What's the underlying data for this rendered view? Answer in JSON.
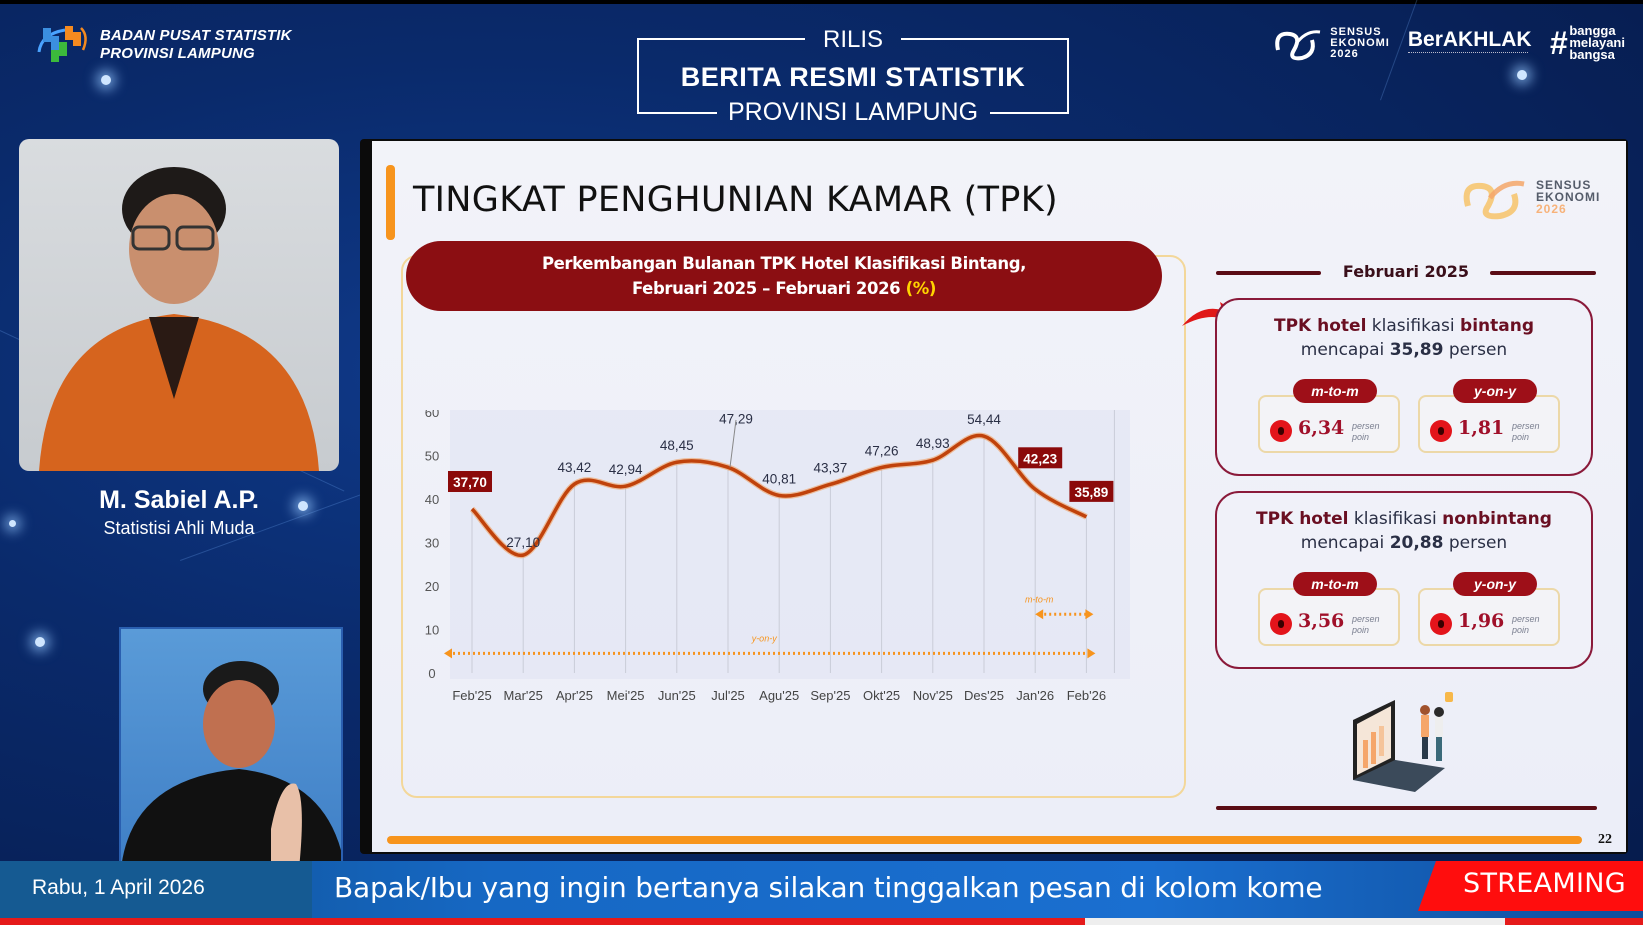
{
  "header": {
    "org_line1": "BADAN PUSAT STATISTIK",
    "org_line2": "PROVINSI LAMPUNG",
    "rilis_top": "RILIS",
    "rilis_main": "BERITA RESMI STATISTIK",
    "rilis_bottom": "PROVINSI LAMPUNG",
    "logos": {
      "sensus_line1": "SENSUS",
      "sensus_line2": "EKONOMI",
      "sensus_line3": "2026",
      "berakhlak": "BerAKHLAK",
      "bangga_line1": "bangga",
      "bangga_line2": "melayani",
      "bangga_line3": "bangsa"
    }
  },
  "speaker": {
    "name": "M. Sabiel A.P.",
    "role": "Statistisi Ahli Muda"
  },
  "slide": {
    "title": "TINGKAT PENGHUNIAN KAMAR (TPK)",
    "logo": {
      "line1": "SENSUS",
      "line2": "EKONOMI",
      "line3": "2026"
    },
    "chart_title_line1": "Perkembangan Bulanan TPK Hotel Klasifikasi Bintang,",
    "chart_title_line2": "Februari 2025 – Februari 2026 ",
    "chart_title_unit": "(%)",
    "panel_period": "Februari 2025",
    "cards": [
      {
        "head_pre": "TPK hotel",
        "head_mid": " klasifikasi ",
        "head_type": "bintang",
        "line2_pre": "mencapai ",
        "line2_value": "35,89",
        "line2_post": " persen",
        "metrics": [
          {
            "tag": "m-to-m",
            "value": "6,34",
            "unit1": "persen",
            "unit2": "poin",
            "direction": "down"
          },
          {
            "tag": "y-on-y",
            "value": "1,81",
            "unit1": "persen",
            "unit2": "poin",
            "direction": "down"
          }
        ]
      },
      {
        "head_pre": "TPK hotel",
        "head_mid": " klasifikasi ",
        "head_type": "nonbintang",
        "line2_pre": "mencapai ",
        "line2_value": "20,88",
        "line2_post": " persen",
        "metrics": [
          {
            "tag": "m-to-m",
            "value": "3,56",
            "unit1": "persen",
            "unit2": "poin",
            "direction": "down"
          },
          {
            "tag": "y-on-y",
            "value": "1,96",
            "unit1": "persen",
            "unit2": "poin",
            "direction": "down"
          }
        ]
      }
    ],
    "page_number": "22"
  },
  "chart_data": {
    "type": "line",
    "title": "Perkembangan Bulanan TPK Hotel Klasifikasi Bintang, Februari 2025 – Februari 2026 (%)",
    "categories": [
      "Feb'25",
      "Mar'25",
      "Apr'25",
      "Mei'25",
      "Jun'25",
      "Jul'25",
      "Agu'25",
      "Sep'25",
      "Okt'25",
      "Nov'25",
      "Des'25",
      "Jan'26",
      "Feb'26"
    ],
    "series": [
      {
        "name": "TPK Hotel Bintang",
        "values": [
          37.7,
          27.1,
          43.42,
          42.94,
          48.45,
          47.29,
          40.81,
          43.37,
          47.26,
          48.93,
          54.44,
          42.23,
          35.89
        ]
      }
    ],
    "value_labels": [
      "37,70",
      "27,10",
      "43,42",
      "42,94",
      "48,45",
      "47,29",
      "40,81",
      "43,37",
      "47,26",
      "48,93",
      "54,44",
      "42,23",
      "35,89"
    ],
    "highlighted": [
      "37,70",
      "42,23",
      "35,89"
    ],
    "y_ticks": [
      "0",
      "10",
      "20",
      "30",
      "40",
      "50",
      "60"
    ],
    "ylim": [
      0,
      60
    ],
    "xlabel": "",
    "ylabel": "",
    "grid": "vertical",
    "annotations": [
      {
        "label": "y-on-y",
        "from": "Feb'25",
        "to": "Feb'26"
      },
      {
        "label": "m-to-m",
        "from": "Jan'26",
        "to": "Feb'26"
      }
    ],
    "line_color": "#c0420b"
  },
  "ticker": {
    "date": "Rabu, 1 April 2026",
    "message": "Bapak/Ibu yang ingin bertanya silakan tinggalkan pesan di kolom kome",
    "live_label": "STREAMING"
  }
}
